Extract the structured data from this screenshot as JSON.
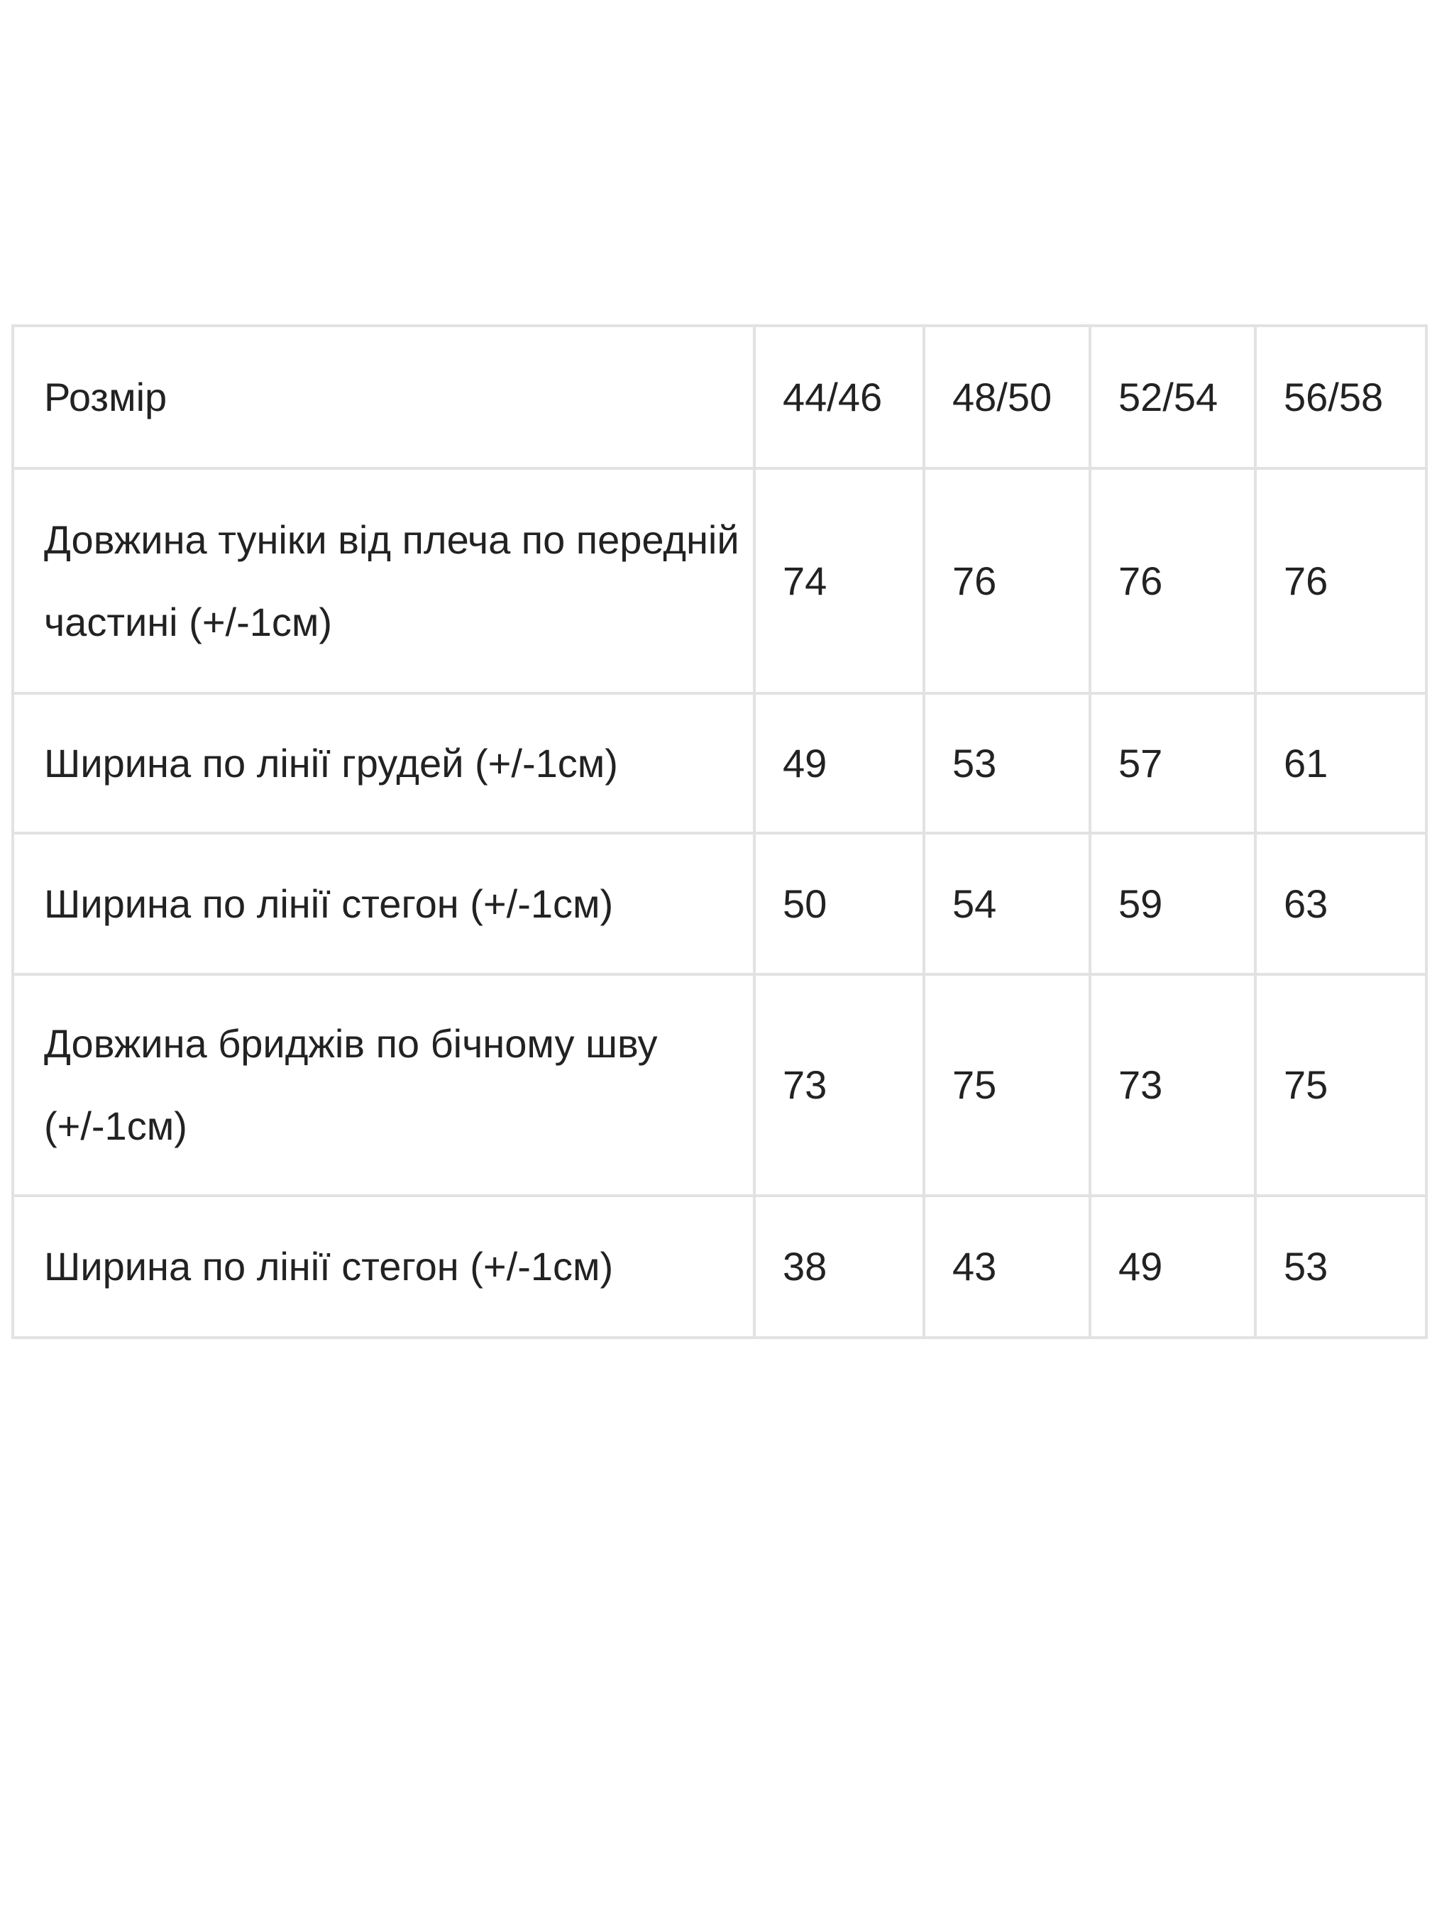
{
  "table": {
    "header": [
      "Розмір",
      "44/46",
      "48/50",
      "52/54",
      "56/58"
    ],
    "rows": [
      {
        "label": "Довжина туніки від плеча по передній частині (+/-1см)",
        "values": [
          "74",
          "76",
          "76",
          "76"
        ]
      },
      {
        "label": "Ширина по лінії грудей (+/-1см)",
        "values": [
          "49",
          "53",
          "57",
          "61"
        ]
      },
      {
        "label": "Ширина по лінії стегон (+/-1см)",
        "values": [
          "50",
          "54",
          "59",
          "63"
        ]
      },
      {
        "label": "Довжина бриджів по бічному шву (+/-1см)",
        "values": [
          "73",
          "75",
          "73",
          "75"
        ]
      },
      {
        "label": "Ширина по лінії стегон (+/-1см)",
        "values": [
          "38",
          "43",
          "49",
          "53"
        ]
      }
    ]
  }
}
